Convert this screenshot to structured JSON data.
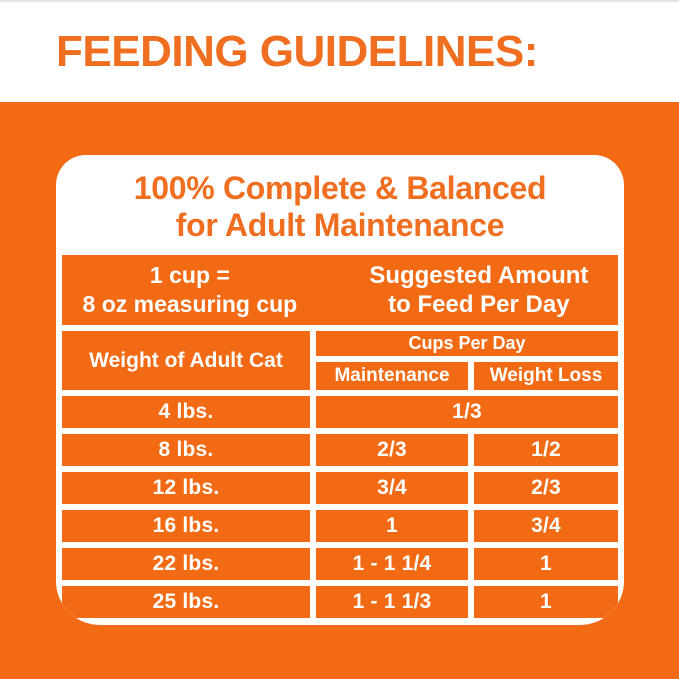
{
  "colors": {
    "orange": "#F26A14",
    "orange_text": "#EF6E20",
    "white": "#FFFFFF"
  },
  "title": "FEEDING GUIDELINES:",
  "card": {
    "heading_line1": "100% Complete & Balanced",
    "heading_line2": "for Adult Maintenance",
    "info_band": {
      "left_line1": "1 cup =",
      "left_line2": "8 oz measuring cup",
      "right_line1": "Suggested Amount",
      "right_line2": "to Feed Per Day"
    },
    "table": {
      "weight_header": "Weight of Adult Cat",
      "cups_header": "Cups Per Day",
      "col_maintenance": "Maintenance",
      "col_weight_loss": "Weight Loss",
      "rows": [
        {
          "weight": "4 lbs.",
          "value": "1/3",
          "merged_columns": true
        },
        {
          "weight": "8 lbs.",
          "maintenance": "2/3",
          "weight_loss": "1/2"
        },
        {
          "weight": "12 lbs.",
          "maintenance": "3/4",
          "weight_loss": "2/3"
        },
        {
          "weight": "16 lbs.",
          "maintenance": "1",
          "weight_loss": "3/4"
        },
        {
          "weight": "22 lbs.",
          "maintenance": "1 - 1 1/4",
          "weight_loss": "1"
        },
        {
          "weight": "25 lbs.",
          "maintenance": "1 - 1 1/3",
          "weight_loss": "1"
        }
      ]
    }
  }
}
